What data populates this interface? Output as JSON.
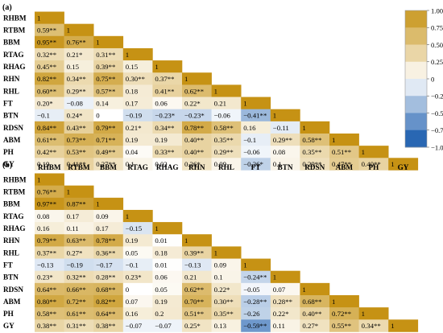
{
  "chart_data": [
    {
      "panel": "(a)",
      "type": "heatmap",
      "variables": [
        "RHBM",
        "RTBM",
        "BBM",
        "RTAG",
        "RHAG",
        "RHN",
        "RHL",
        "FT",
        "BTN",
        "RDSN",
        "ABM",
        "PH",
        "GY"
      ],
      "rows": [
        [
          {
            "v": 1,
            "t": "1"
          }
        ],
        [
          {
            "v": 0.59,
            "t": "0.59**"
          },
          {
            "v": 1,
            "t": "1"
          }
        ],
        [
          {
            "v": 0.95,
            "t": "0.95**"
          },
          {
            "v": 0.76,
            "t": "0.76**"
          },
          {
            "v": 1,
            "t": "1"
          }
        ],
        [
          {
            "v": 0.32,
            "t": "0.32**"
          },
          {
            "v": 0.21,
            "t": "0.21*"
          },
          {
            "v": 0.31,
            "t": "0.31**"
          },
          {
            "v": 1,
            "t": "1"
          }
        ],
        [
          {
            "v": 0.45,
            "t": "0.45**"
          },
          {
            "v": 0.15,
            "t": "0.15"
          },
          {
            "v": 0.39,
            "t": "0.39**"
          },
          {
            "v": 0.15,
            "t": "0.15"
          },
          {
            "v": 1,
            "t": "1"
          }
        ],
        [
          {
            "v": 0.82,
            "t": "0.82**"
          },
          {
            "v": 0.34,
            "t": "0.34**"
          },
          {
            "v": 0.75,
            "t": "0.75**"
          },
          {
            "v": 0.3,
            "t": "0.30**"
          },
          {
            "v": 0.37,
            "t": "0.37**"
          },
          {
            "v": 1,
            "t": "1"
          }
        ],
        [
          {
            "v": 0.6,
            "t": "0.60**"
          },
          {
            "v": 0.29,
            "t": "0.29**"
          },
          {
            "v": 0.57,
            "t": "0.57**"
          },
          {
            "v": 0.18,
            "t": "0.18"
          },
          {
            "v": 0.41,
            "t": "0.41**"
          },
          {
            "v": 0.62,
            "t": "0.62**"
          },
          {
            "v": 1,
            "t": "1"
          }
        ],
        [
          {
            "v": 0.2,
            "t": "0.20*"
          },
          {
            "v": -0.08,
            "t": "−0.08"
          },
          {
            "v": 0.14,
            "t": "0.14"
          },
          {
            "v": 0.17,
            "t": "0.17"
          },
          {
            "v": 0.06,
            "t": "0.06"
          },
          {
            "v": 0.22,
            "t": "0.22*"
          },
          {
            "v": 0.21,
            "t": "0.21"
          },
          {
            "v": 1,
            "t": "1"
          }
        ],
        [
          {
            "v": -0.1,
            "t": "−0.1"
          },
          {
            "v": 0.24,
            "t": "0.24*"
          },
          {
            "v": 0,
            "t": "0"
          },
          {
            "v": -0.19,
            "t": "−0.19"
          },
          {
            "v": -0.23,
            "t": "−0.23*"
          },
          {
            "v": -0.23,
            "t": "−0.23*"
          },
          {
            "v": -0.06,
            "t": "−0.06"
          },
          {
            "v": -0.41,
            "t": "−0.41**"
          },
          {
            "v": 1,
            "t": "1"
          }
        ],
        [
          {
            "v": 0.84,
            "t": "0.84**"
          },
          {
            "v": 0.43,
            "t": "0.43**"
          },
          {
            "v": 0.79,
            "t": "0.79**"
          },
          {
            "v": 0.21,
            "t": "0.21*"
          },
          {
            "v": 0.34,
            "t": "0.34**"
          },
          {
            "v": 0.78,
            "t": "0.78**"
          },
          {
            "v": 0.58,
            "t": "0.58**"
          },
          {
            "v": 0.16,
            "t": "0.16"
          },
          {
            "v": -0.11,
            "t": "−0.11"
          },
          {
            "v": 1,
            "t": "1"
          }
        ],
        [
          {
            "v": 0.61,
            "t": "0.61**"
          },
          {
            "v": 0.73,
            "t": "0.73**"
          },
          {
            "v": 0.71,
            "t": "0.71**"
          },
          {
            "v": 0.19,
            "t": "0.19"
          },
          {
            "v": 0.19,
            "t": "0.19"
          },
          {
            "v": 0.4,
            "t": "0.40**"
          },
          {
            "v": 0.35,
            "t": "0.35**"
          },
          {
            "v": -0.1,
            "t": "−0.1"
          },
          {
            "v": 0.29,
            "t": "0.29**"
          },
          {
            "v": 0.58,
            "t": "0.58**"
          },
          {
            "v": 1,
            "t": "1"
          }
        ],
        [
          {
            "v": 0.42,
            "t": "0.42**"
          },
          {
            "v": 0.53,
            "t": "0.53**"
          },
          {
            "v": 0.49,
            "t": "0.49**"
          },
          {
            "v": 0.04,
            "t": "0.04"
          },
          {
            "v": 0.33,
            "t": "0.33**"
          },
          {
            "v": 0.4,
            "t": "0.40**"
          },
          {
            "v": 0.29,
            "t": "0.29**"
          },
          {
            "v": -0.06,
            "t": "−0.06"
          },
          {
            "v": 0.08,
            "t": "0.08"
          },
          {
            "v": 0.35,
            "t": "0.35**"
          },
          {
            "v": 0.51,
            "t": "0.51**"
          },
          {
            "v": 1,
            "t": "1"
          }
        ],
        [
          {
            "v": 0.19,
            "t": "0.19"
          },
          {
            "v": 0.41,
            "t": "0.41**"
          },
          {
            "v": 0.27,
            "t": "0.27**"
          },
          {
            "v": 0.1,
            "t": "0.1"
          },
          {
            "v": 0.02,
            "t": "0.02"
          },
          {
            "v": 0.26,
            "t": "0.26*"
          },
          {
            "v": 0.09,
            "t": "0.09"
          },
          {
            "v": -0.26,
            "t": "−0.26*"
          },
          {
            "v": 0.1,
            "t": "0.1"
          },
          {
            "v": 0.29,
            "t": "0.29**"
          },
          {
            "v": 0.47,
            "t": "0.47**"
          },
          {
            "v": 0.4,
            "t": "0.40**"
          },
          {
            "v": 1,
            "t": "1"
          }
        ]
      ],
      "colorbar": {
        "range": [
          -1,
          1
        ],
        "ticks": [
          "1.00",
          "0.75",
          "0.50",
          "0.25",
          "0",
          "−0.25",
          "−0.50",
          "−0.75",
          "−1.00"
        ]
      }
    },
    {
      "panel": "(b)",
      "type": "heatmap",
      "variables": [
        "RHBM",
        "RTBM",
        "BBM",
        "RTAG",
        "RHAG",
        "RHN",
        "RHL",
        "FT",
        "BTN",
        "RDSN",
        "ABM",
        "PH",
        "GY"
      ],
      "rows": [
        [
          {
            "v": 1,
            "t": "1"
          }
        ],
        [
          {
            "v": 0.76,
            "t": "0.76**"
          },
          {
            "v": 1,
            "t": "1"
          }
        ],
        [
          {
            "v": 0.97,
            "t": "0.97**"
          },
          {
            "v": 0.87,
            "t": "0.87**"
          },
          {
            "v": 1,
            "t": "1"
          }
        ],
        [
          {
            "v": 0.08,
            "t": "0.08"
          },
          {
            "v": 0.17,
            "t": "0.17"
          },
          {
            "v": 0.09,
            "t": "0.09"
          },
          {
            "v": 1,
            "t": "1"
          }
        ],
        [
          {
            "v": 0.16,
            "t": "0.16"
          },
          {
            "v": 0.11,
            "t": "0.11"
          },
          {
            "v": 0.17,
            "t": "0.17"
          },
          {
            "v": -0.15,
            "t": "−0.15"
          },
          {
            "v": 1,
            "t": "1"
          }
        ],
        [
          {
            "v": 0.79,
            "t": "0.79**"
          },
          {
            "v": 0.63,
            "t": "0.63**"
          },
          {
            "v": 0.78,
            "t": "0.78**"
          },
          {
            "v": 0.19,
            "t": "0.19"
          },
          {
            "v": 0.01,
            "t": "0.01"
          },
          {
            "v": 1,
            "t": "1"
          }
        ],
        [
          {
            "v": 0.37,
            "t": "0.37**"
          },
          {
            "v": 0.27,
            "t": "0.27*"
          },
          {
            "v": 0.36,
            "t": "0.36**"
          },
          {
            "v": 0.05,
            "t": "0.05"
          },
          {
            "v": 0.18,
            "t": "0.18"
          },
          {
            "v": 0.39,
            "t": "0.39**"
          },
          {
            "v": 1,
            "t": "1"
          }
        ],
        [
          {
            "v": -0.13,
            "t": "−0.13"
          },
          {
            "v": -0.19,
            "t": "−0.19"
          },
          {
            "v": -0.17,
            "t": "−0.17"
          },
          {
            "v": -0.1,
            "t": "−0.1"
          },
          {
            "v": 0.01,
            "t": "0.01"
          },
          {
            "v": -0.13,
            "t": "−0.13"
          },
          {
            "v": 0.09,
            "t": "0.09"
          },
          {
            "v": 1,
            "t": "1"
          }
        ],
        [
          {
            "v": 0.23,
            "t": "0.23*"
          },
          {
            "v": 0.32,
            "t": "0.32**"
          },
          {
            "v": 0.28,
            "t": "0.28**"
          },
          {
            "v": 0.23,
            "t": "0.23*"
          },
          {
            "v": 0.06,
            "t": "0.06"
          },
          {
            "v": 0.21,
            "t": "0.21"
          },
          {
            "v": 0.1,
            "t": "0.1"
          },
          {
            "v": -0.24,
            "t": "−0.24**"
          },
          {
            "v": 1,
            "t": "1"
          }
        ],
        [
          {
            "v": 0.64,
            "t": "0.64**"
          },
          {
            "v": 0.66,
            "t": "0.66**"
          },
          {
            "v": 0.68,
            "t": "0.68**"
          },
          {
            "v": 0,
            "t": "0"
          },
          {
            "v": 0.05,
            "t": "0.05"
          },
          {
            "v": 0.62,
            "t": "0.62**"
          },
          {
            "v": 0.22,
            "t": "0.22*"
          },
          {
            "v": -0.05,
            "t": "−0.05"
          },
          {
            "v": 0.07,
            "t": "0.07"
          },
          {
            "v": 1,
            "t": "1"
          }
        ],
        [
          {
            "v": 0.8,
            "t": "0.80**"
          },
          {
            "v": 0.72,
            "t": "0.72**"
          },
          {
            "v": 0.82,
            "t": "0.82**"
          },
          {
            "v": 0.07,
            "t": "0.07"
          },
          {
            "v": 0.19,
            "t": "0.19"
          },
          {
            "v": 0.7,
            "t": "0.70**"
          },
          {
            "v": 0.3,
            "t": "0.30**"
          },
          {
            "v": -0.28,
            "t": "−0.28**"
          },
          {
            "v": 0.28,
            "t": "0.28**"
          },
          {
            "v": 0.68,
            "t": "0.68**"
          },
          {
            "v": 1,
            "t": "1"
          }
        ],
        [
          {
            "v": 0.58,
            "t": "0.58**"
          },
          {
            "v": 0.61,
            "t": "0.61**"
          },
          {
            "v": 0.64,
            "t": "0.64**"
          },
          {
            "v": 0.16,
            "t": "0.16"
          },
          {
            "v": 0.2,
            "t": "0.2"
          },
          {
            "v": 0.51,
            "t": "0.51**"
          },
          {
            "v": 0.35,
            "t": "0.35**"
          },
          {
            "v": -0.26,
            "t": "−0.26"
          },
          {
            "v": 0.22,
            "t": "0.22*"
          },
          {
            "v": 0.4,
            "t": "0.40**"
          },
          {
            "v": 0.72,
            "t": "0.72**"
          },
          {
            "v": 1,
            "t": "1"
          }
        ],
        [
          {
            "v": 0.38,
            "t": "0.38**"
          },
          {
            "v": 0.31,
            "t": "0.31**"
          },
          {
            "v": 0.38,
            "t": "0.38**"
          },
          {
            "v": -0.07,
            "t": "−0.07"
          },
          {
            "v": -0.07,
            "t": "−0.07"
          },
          {
            "v": 0.25,
            "t": "0.25*"
          },
          {
            "v": 0.13,
            "t": "0.13"
          },
          {
            "v": -0.59,
            "t": "−0.59**"
          },
          {
            "v": 0.11,
            "t": "0.11"
          },
          {
            "v": 0.27,
            "t": "0.27*"
          },
          {
            "v": 0.55,
            "t": "0.55**"
          },
          {
            "v": 0.34,
            "t": "0.34**"
          },
          {
            "v": 1,
            "t": "1"
          }
        ]
      ]
    }
  ],
  "colors": {
    "positive_max": "#c69214",
    "neutral": "#ffffff",
    "negative_max": "#0a51a8"
  }
}
